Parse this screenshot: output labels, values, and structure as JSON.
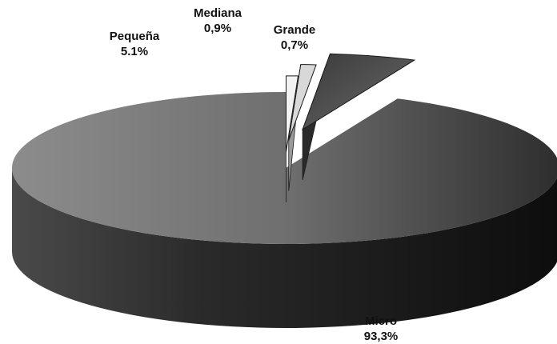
{
  "chart_data": {
    "type": "pie",
    "style": "3d-exploded",
    "slices": [
      {
        "label": "Micro",
        "value_text": "93,3%",
        "value": 93.3,
        "color": "#6e6e6e"
      },
      {
        "label": "Pequeña",
        "value_text": "5.1%",
        "value": 5.1,
        "color": "#4a4a4a"
      },
      {
        "label": "Mediana",
        "value_text": "0,9%",
        "value": 0.9,
        "color": "#d8d8d8"
      },
      {
        "label": "Grande",
        "value_text": "0,7%",
        "value": 0.7,
        "color": "#f2f2f2"
      }
    ],
    "legend": "none",
    "grid": false
  }
}
